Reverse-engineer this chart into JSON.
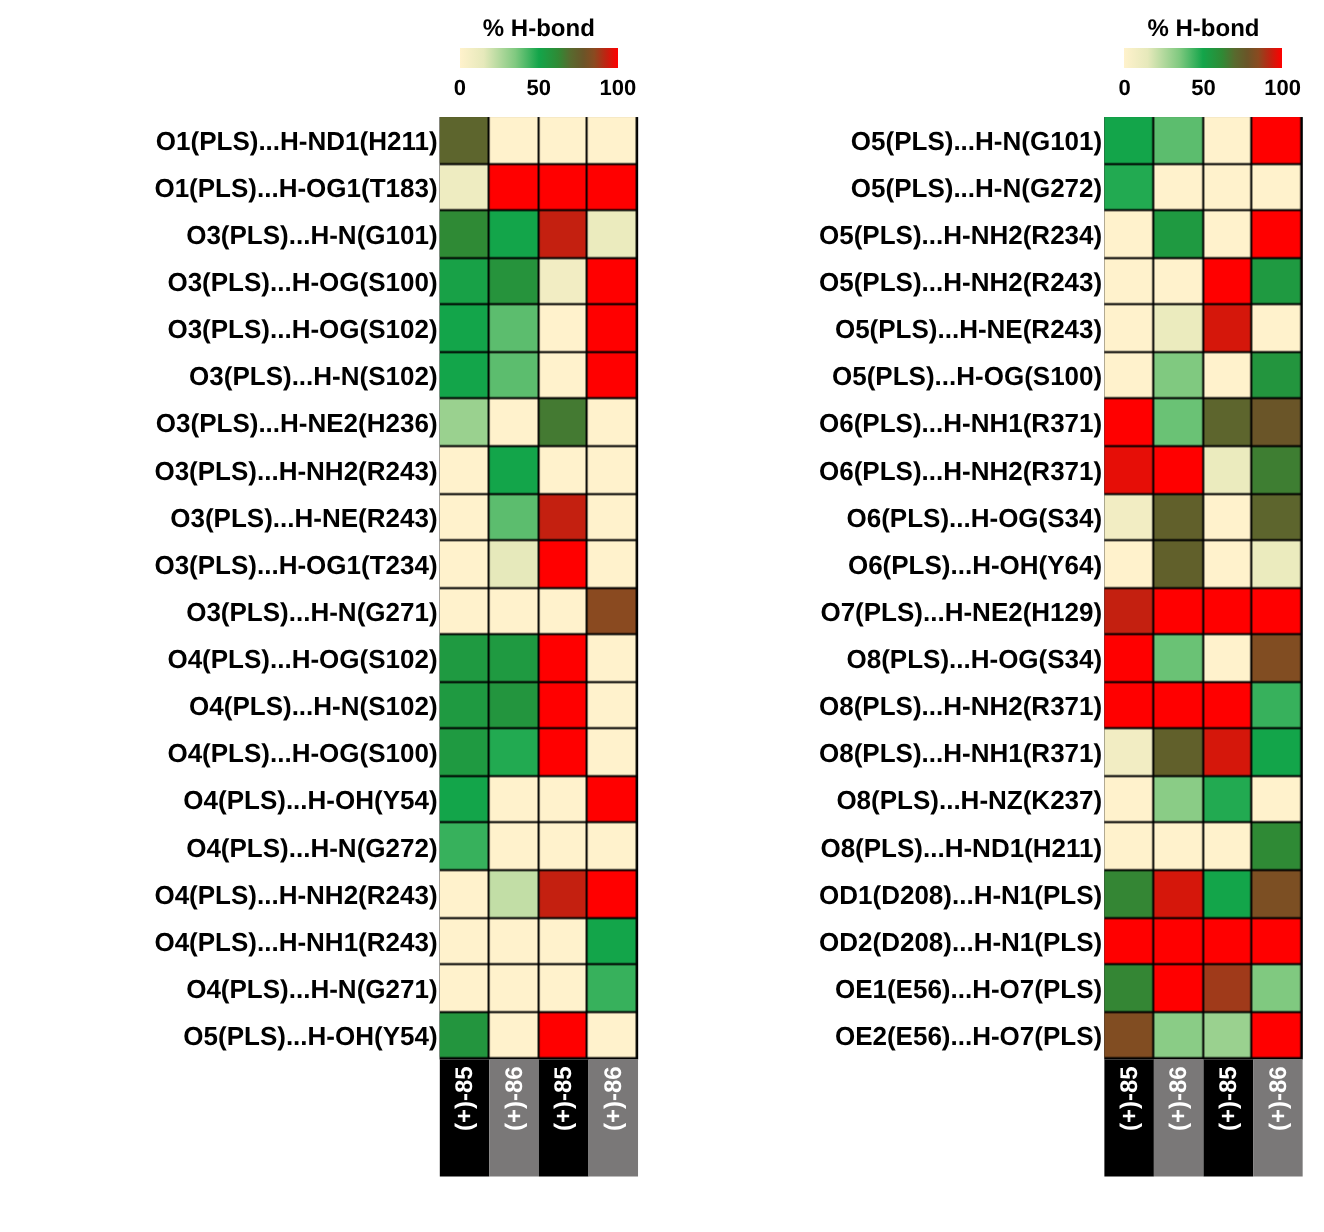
{
  "chart_data": [
    {
      "type": "heatmap",
      "clabel": "% H-bond",
      "clim": [
        0,
        100
      ],
      "cticks": [
        0,
        50,
        100
      ],
      "categories": [
        "(+)-85",
        "(+)-86",
        "(+)-85",
        "(+)-86"
      ],
      "y_categories": [
        "O1(PLS)...H-ND1(H211)",
        "O1(PLS)...H-OG1(T183)",
        "O3(PLS)...H-N(G101)",
        "O3(PLS)...H-OG(S100)",
        "O3(PLS)...H-OG(S102)",
        "O3(PLS)...H-N(S102)",
        "O3(PLS)...H-NE2(H236)",
        "O3(PLS)...H-NH2(R243)",
        "O3(PLS)...H-NE(R243)",
        "O3(PLS)...H-OG1(T234)",
        "O3(PLS)...H-N(G271)",
        "O4(PLS)...H-OG(S102)",
        "O4(PLS)...H-N(S102)",
        "O4(PLS)...H-OG(S100)",
        "O4(PLS)...H-OH(Y54)",
        "O4(PLS)...H-N(G272)",
        "O4(PLS)...H-NH2(R243)",
        "O4(PLS)...H-NH1(R243)",
        "O4(PLS)...H-N(G271)",
        "O5(PLS)...H-OH(Y54)"
      ],
      "cells": [
        [
          72,
          0,
          0,
          0
        ],
        [
          10,
          100,
          100,
          100
        ],
        [
          62,
          50,
          93,
          12
        ],
        [
          52,
          58,
          8,
          100
        ],
        [
          50,
          40,
          0,
          100
        ],
        [
          50,
          40,
          0,
          100
        ],
        [
          30,
          0,
          66,
          0
        ],
        [
          0,
          50,
          0,
          0
        ],
        [
          0,
          40,
          93,
          0
        ],
        [
          0,
          15,
          100,
          0
        ],
        [
          0,
          0,
          0,
          85
        ],
        [
          55,
          55,
          100,
          0
        ],
        [
          55,
          57,
          100,
          0
        ],
        [
          55,
          48,
          100,
          0
        ],
        [
          50,
          0,
          0,
          100
        ],
        [
          45,
          0,
          0,
          0
        ],
        [
          0,
          22,
          93,
          100
        ],
        [
          0,
          0,
          0,
          50
        ],
        [
          0,
          0,
          0,
          45
        ],
        [
          57,
          0,
          100,
          0
        ]
      ]
    },
    {
      "type": "heatmap",
      "clabel": "% H-bond",
      "clim": [
        0,
        100
      ],
      "cticks": [
        0,
        50,
        100
      ],
      "categories": [
        "(+)-85",
        "(+)-86",
        "(+)-85",
        "(+)-86"
      ],
      "y_categories": [
        "O5(PLS)...H-N(G101)",
        "O5(PLS)...H-N(G272)",
        "O5(PLS)...H-NH2(R234)",
        "O5(PLS)...H-NH2(R243)",
        "O5(PLS)...H-NE(R243)",
        "O5(PLS)...H-OG(S100)",
        "O6(PLS)...H-NH1(R371)",
        "O6(PLS)...H-NH2(R371)",
        "O6(PLS)...H-OG(S34)",
        "O6(PLS)...H-OH(Y64)",
        "O7(PLS)...H-NE2(H129)",
        "O8(PLS)...H-OG(S34)",
        "O8(PLS)...H-NH2(R371)",
        "O8(PLS)...H-NH1(R371)",
        "O8(PLS)...H-NZ(K237)",
        "O8(PLS)...H-ND1(H211)",
        "OD1(D208)...H-N1(PLS)",
        "OD2(D208)...H-N1(PLS)",
        "OE1(E56)...H-O7(PLS)",
        "OE2(E56)...H-O7(PLS)"
      ],
      "cells": [
        [
          50,
          40,
          0,
          100
        ],
        [
          48,
          0,
          0,
          0
        ],
        [
          0,
          55,
          0,
          100
        ],
        [
          0,
          0,
          100,
          55
        ],
        [
          0,
          12,
          95,
          0
        ],
        [
          0,
          35,
          0,
          57
        ],
        [
          100,
          38,
          72,
          78
        ],
        [
          97,
          100,
          12,
          65
        ],
        [
          8,
          74,
          0,
          72
        ],
        [
          0,
          74,
          0,
          12
        ],
        [
          93,
          100,
          100,
          100
        ],
        [
          100,
          38,
          0,
          83
        ],
        [
          100,
          100,
          100,
          45
        ],
        [
          8,
          74,
          95,
          50
        ],
        [
          0,
          33,
          48,
          0
        ],
        [
          0,
          0,
          0,
          62
        ],
        [
          63,
          95,
          50,
          82
        ],
        [
          100,
          100,
          100,
          100
        ],
        [
          63,
          100,
          88,
          35
        ],
        [
          83,
          33,
          30,
          100
        ]
      ]
    }
  ]
}
